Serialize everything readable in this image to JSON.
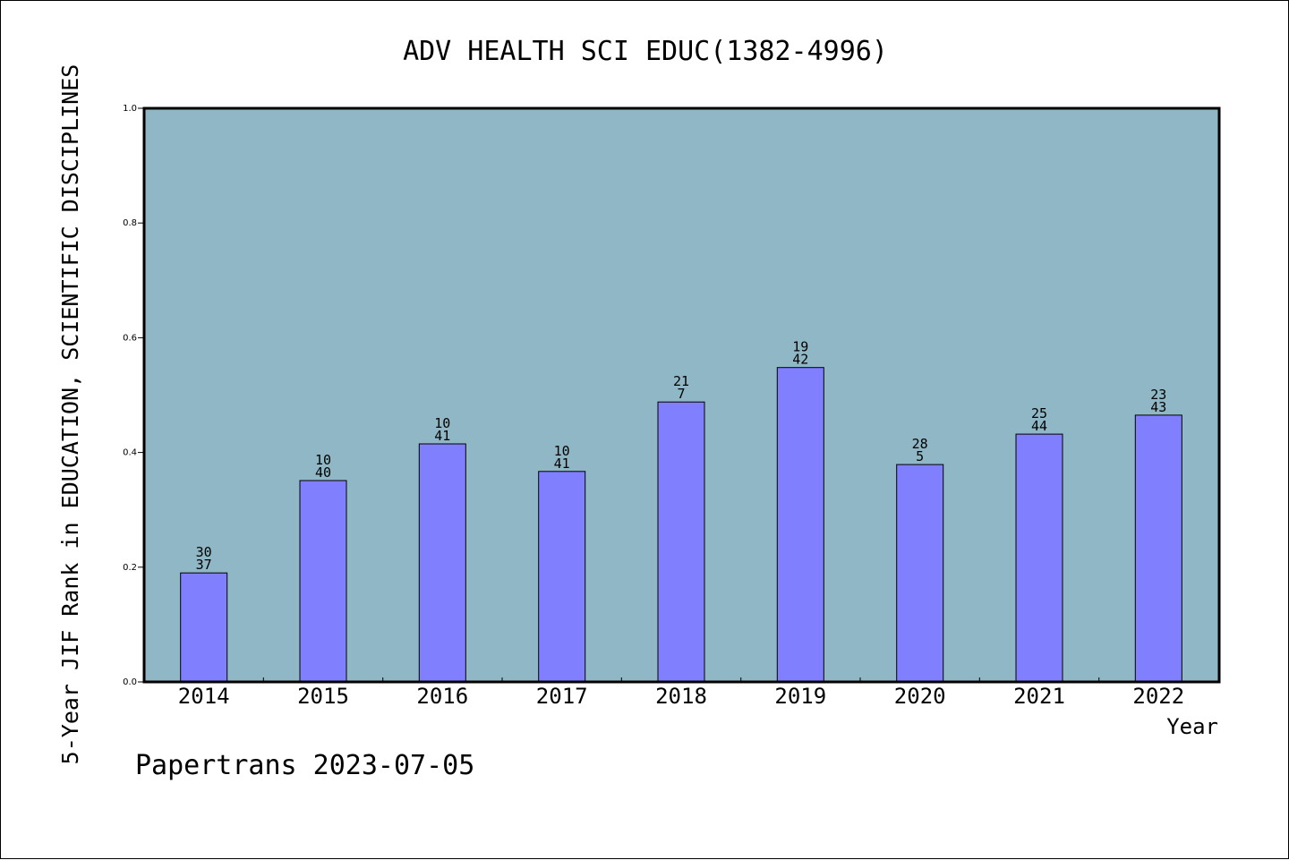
{
  "colors": {
    "plot_background": "#8fb7c5",
    "bar_fill": "#8080ff",
    "bar_stroke": "#000000",
    "axis": "#000000"
  },
  "footer": "Papertrans 2023-07-05",
  "chart_data": {
    "type": "bar",
    "title": "ADV HEALTH SCI EDUC(1382-4996)",
    "xlabel": "Year",
    "ylabel": "5-Year JIF Rank in EDUCATION, SCIENTIFIC DISCIPLINES",
    "ylim": [
      0,
      1.0
    ],
    "yticks": [
      "0.0",
      "0.2",
      "0.4",
      "0.6",
      "0.8",
      "1.0"
    ],
    "grid": false,
    "legend": "none",
    "categories": [
      "2014",
      "2015",
      "2016",
      "2017",
      "2018",
      "2019",
      "2020",
      "2021",
      "2022"
    ],
    "values": [
      0.19,
      0.351,
      0.415,
      0.367,
      0.488,
      0.548,
      0.379,
      0.432,
      0.465
    ],
    "labels": [
      [
        "30",
        "37"
      ],
      [
        "10",
        "40"
      ],
      [
        "10",
        "41"
      ],
      [
        "10",
        "41"
      ],
      [
        "21",
        "7"
      ],
      [
        "19",
        "42"
      ],
      [
        "28",
        "5"
      ],
      [
        "25",
        "44"
      ],
      [
        "23",
        "43"
      ]
    ]
  }
}
